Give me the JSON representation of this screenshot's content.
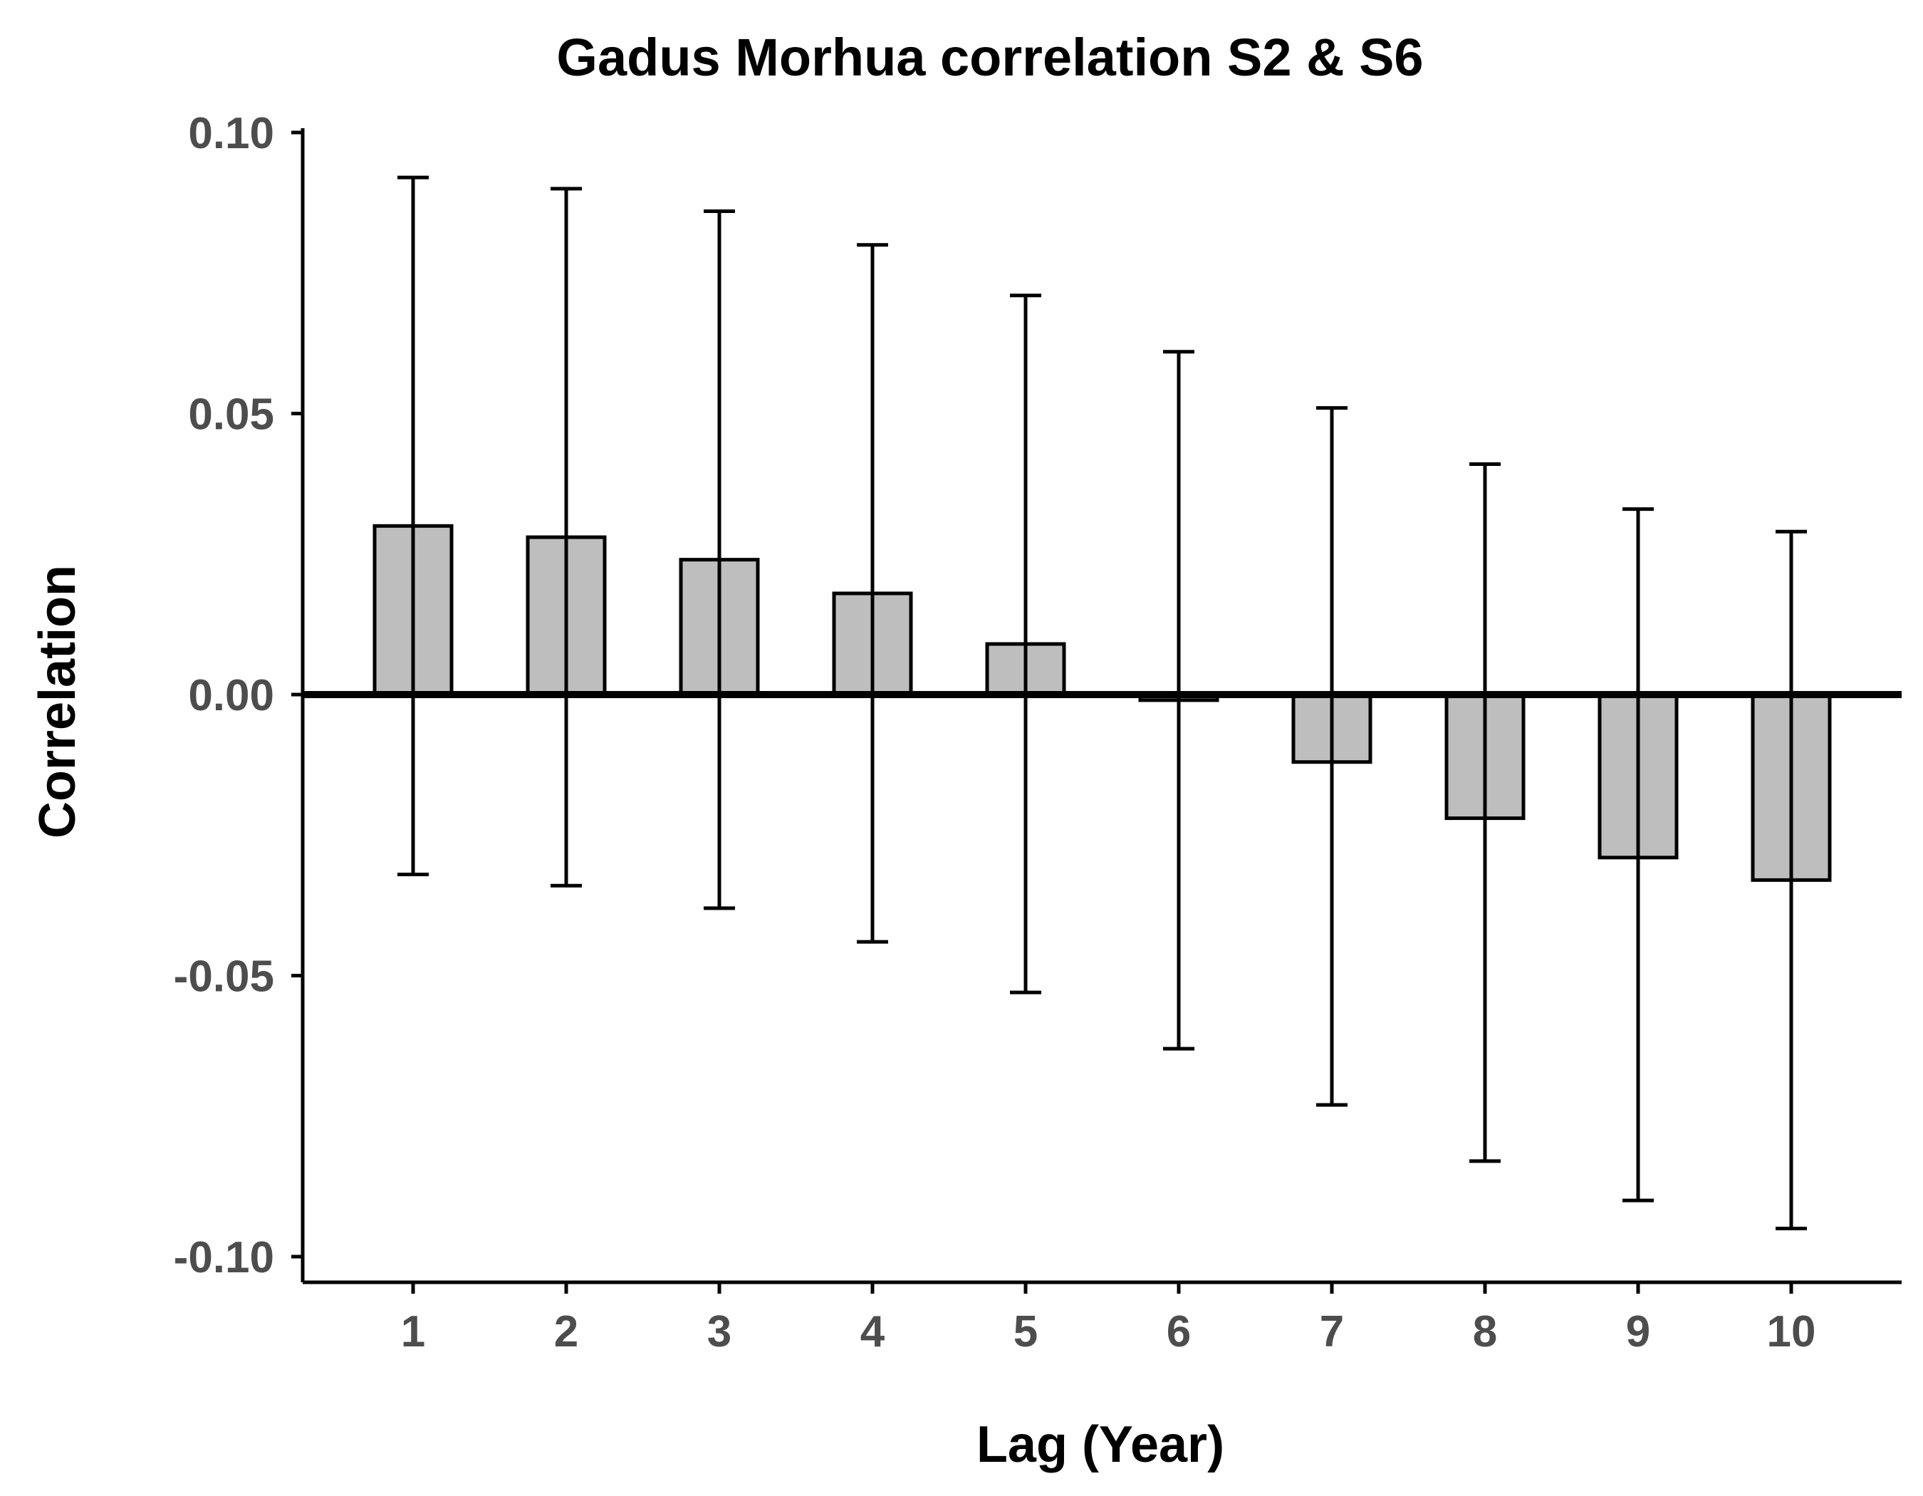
{
  "chart_data": {
    "type": "bar",
    "title": "Gadus Morhua correlation S2 & S6",
    "xlabel": "Lag (Year)",
    "ylabel": "Correlation",
    "categories": [
      "1",
      "2",
      "3",
      "4",
      "5",
      "6",
      "7",
      "8",
      "9",
      "10"
    ],
    "values": [
      0.03,
      0.028,
      0.024,
      0.018,
      0.009,
      -0.001,
      -0.012,
      -0.022,
      -0.029,
      -0.033
    ],
    "error_lower": [
      -0.032,
      -0.034,
      -0.038,
      -0.044,
      -0.053,
      -0.063,
      -0.073,
      -0.083,
      -0.09,
      -0.095
    ],
    "error_upper": [
      0.092,
      0.09,
      0.086,
      0.08,
      0.071,
      0.061,
      0.051,
      0.041,
      0.033,
      0.029
    ],
    "ylim": [
      -0.104,
      0.104
    ],
    "yticks": [
      -0.1,
      -0.05,
      0.0,
      0.05,
      0.1
    ],
    "ytick_labels": [
      "-0.10",
      "-0.05",
      "0.00",
      "0.05",
      "0.10"
    ],
    "grid": false,
    "legend": "none",
    "zero_line": true,
    "colors": {
      "bar_fill": "#bebebe",
      "bar_stroke": "#000000",
      "error_bar": "#000000",
      "axis": "#000000",
      "tick_label": "#4d4d4d",
      "text": "#000000"
    }
  }
}
